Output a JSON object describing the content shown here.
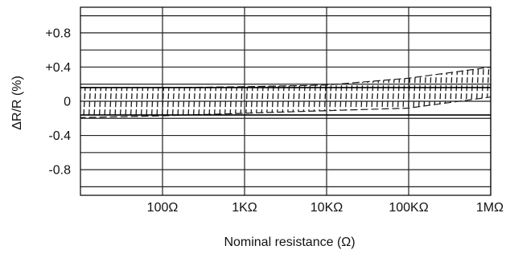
{
  "chart_data": {
    "type": "area",
    "title": "",
    "xlabel": "Nominal resistance (Ω)",
    "ylabel": "ΔR/R (%)",
    "x_scale": "log",
    "xlim": [
      10,
      1000000
    ],
    "ylim": [
      -1.1,
      1.1
    ],
    "grid": true,
    "x_tick_values": [
      100,
      1000,
      10000,
      100000,
      1000000
    ],
    "x_tick_labels": [
      "100Ω",
      "1KΩ",
      "10KΩ",
      "100KΩ",
      "1MΩ"
    ],
    "y_tick_values": [
      0.8,
      0.4,
      0,
      -0.4,
      -0.8
    ],
    "y_tick_labels": [
      "+0.8",
      "+0.4",
      "0",
      "-0.4",
      "-0.8"
    ],
    "y_gridlines": [
      1.0,
      0.8,
      0.6,
      0.4,
      0.2,
      0,
      -0.2,
      -0.4,
      -0.6,
      -0.8,
      -1.0
    ],
    "band_fill": "hatched",
    "band": {
      "x": [
        10,
        100,
        1000,
        10000,
        100000,
        1000000
      ],
      "upper": [
        0.16,
        0.16,
        0.17,
        0.19,
        0.27,
        0.4
      ],
      "lower": [
        -0.19,
        -0.17,
        -0.14,
        -0.11,
        -0.08,
        0.05
      ]
    },
    "reference_lines": [
      {
        "y": 0.16,
        "style": "solid"
      },
      {
        "y": -0.16,
        "style": "solid"
      }
    ]
  },
  "colors": {
    "axis": "#000000",
    "grid": "#222222",
    "hatch": "#1a1a1a"
  }
}
